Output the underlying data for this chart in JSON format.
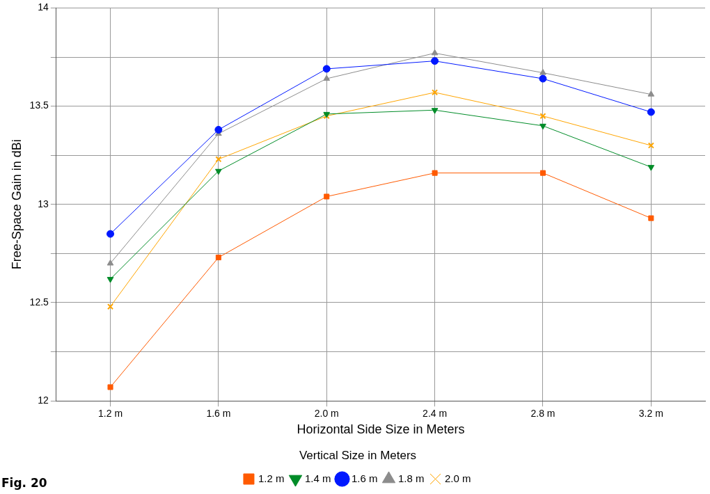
{
  "chart_data": {
    "type": "line",
    "xlabel": "Horizontal Side Size in Meters",
    "ylabel": "Free-Space Gain in dBi",
    "legend_title": "Vertical Size in Meters",
    "legend": "bottom",
    "grid": true,
    "categories": [
      "1.2 m",
      "1.6 m",
      "2.0 m",
      "2.4 m",
      "2.8 m",
      "3.2 m"
    ],
    "ylim": [
      12,
      14
    ],
    "yticks": [
      12,
      {
        "value": 12.25,
        "label": null
      },
      12.5,
      {
        "value": 12.75,
        "label": null
      },
      13,
      {
        "value": 13.25,
        "label": null
      },
      13.5,
      {
        "value": 13.75,
        "label": null
      },
      14
    ],
    "annotations": [
      "Fig. 20"
    ],
    "series": [
      {
        "name": "1.2 m",
        "color": "#ff5a00",
        "marker": "square",
        "values": [
          12.07,
          12.73,
          13.04,
          13.16,
          13.16,
          12.93
        ]
      },
      {
        "name": "1.4 m",
        "color": "#008c28",
        "marker": "triangle-down",
        "values": [
          12.62,
          13.17,
          13.46,
          13.48,
          13.4,
          13.19
        ]
      },
      {
        "name": "1.6 m",
        "color": "#0018ff",
        "marker": "circle",
        "values": [
          12.85,
          13.38,
          13.69,
          13.73,
          13.64,
          13.47
        ]
      },
      {
        "name": "1.8 m",
        "color": "#8c8c8c",
        "marker": "triangle",
        "values": [
          12.7,
          13.36,
          13.64,
          13.77,
          13.67,
          13.56
        ]
      },
      {
        "name": "2.0 m",
        "color": "#ffa500",
        "marker": "cross",
        "values": [
          12.48,
          13.23,
          13.45,
          13.57,
          13.45,
          13.3
        ]
      }
    ]
  }
}
